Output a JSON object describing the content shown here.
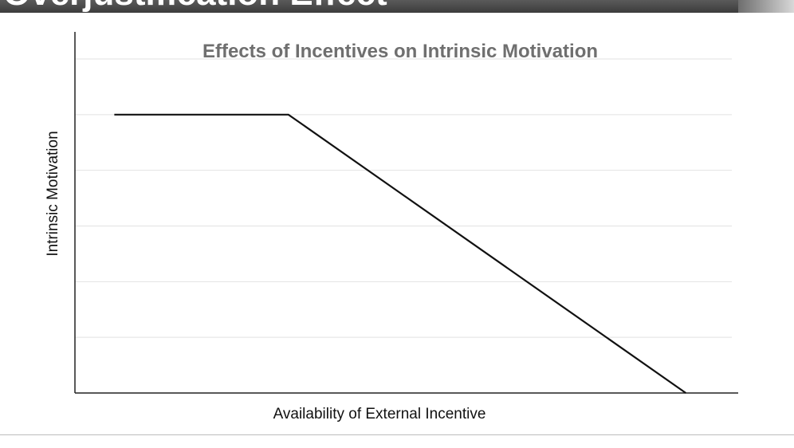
{
  "slide": {
    "header_title": "Overjustification Effect"
  },
  "chart_data": {
    "type": "line",
    "title": "Effects of Incentives on Intrinsic Motivation",
    "xlabel": "Availability of External Incentive",
    "ylabel": "Intrinsic Motivation",
    "xlim": [
      0,
      10
    ],
    "ylim": [
      0,
      6
    ],
    "grid": true,
    "series": [
      {
        "x": [
          0.6,
          3.25,
          9.3
        ],
        "y": [
          5,
          5,
          0
        ]
      }
    ],
    "colors": {
      "line": "#111111",
      "grid": "#e2e2e2",
      "axis": "#222222"
    }
  }
}
